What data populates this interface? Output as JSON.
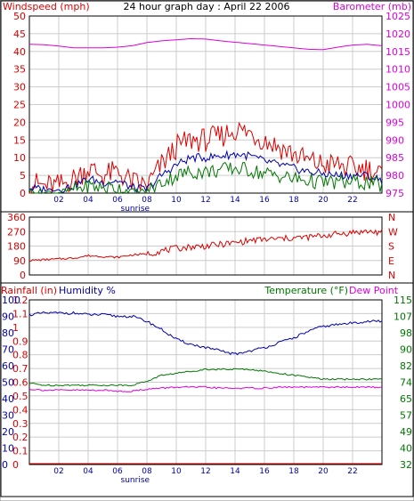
{
  "title": "24 hour graph day : April 22 2006",
  "colors": {
    "red": "#dd0000",
    "blue": "#0000aa",
    "green": "#007700",
    "magenta": "#dd00dd",
    "axis": "#000000",
    "grid": "#cccccc"
  },
  "chart_data": [
    {
      "type": "line",
      "title": "24 hour graph day : April 22 2006",
      "ylabel_left": "Windspeed (mph)",
      "ylabel_right": "Barometer (mb)",
      "x_ticks": [
        "02",
        "04",
        "06",
        "08",
        "10",
        "12",
        "14",
        "16",
        "18",
        "20",
        "22"
      ],
      "x_annotation": "sunrise",
      "ylim_left": [
        0,
        50
      ],
      "y_ticks_left": [
        "0",
        "5",
        "10",
        "15",
        "20",
        "25",
        "30",
        "35",
        "40",
        "45",
        "50"
      ],
      "ylim_right": [
        975,
        1025
      ],
      "y_ticks_right": [
        "975",
        "980",
        "985",
        "990",
        "995",
        "1000",
        "1005",
        "1010",
        "1015",
        "1020",
        "1025"
      ],
      "grid": true,
      "series": [
        {
          "name": "Barometer",
          "axis": "right",
          "color": "#dd00dd",
          "x": [
            0,
            1,
            2,
            3,
            4,
            5,
            6,
            7,
            8,
            9,
            10,
            11,
            12,
            13,
            14,
            15,
            16,
            17,
            18,
            19,
            20,
            21,
            22,
            23,
            24
          ],
          "values": [
            1017,
            1016.9,
            1016.5,
            1016,
            1016,
            1016,
            1016.2,
            1016.6,
            1017.5,
            1018,
            1018.3,
            1018.6,
            1018.5,
            1018,
            1017.6,
            1017.2,
            1016.8,
            1016.4,
            1016,
            1015.6,
            1015.5,
            1016.2,
            1016.8,
            1017,
            1016.6
          ]
        },
        {
          "name": "Gust",
          "axis": "left",
          "color": "#dd0000",
          "x": [
            0,
            1,
            2,
            3,
            4,
            5,
            6,
            7,
            8,
            9,
            10,
            11,
            12,
            13,
            14,
            15,
            16,
            17,
            18,
            19,
            20,
            21,
            22,
            23,
            24
          ],
          "values": [
            3,
            2,
            2,
            4,
            7,
            5,
            6,
            3,
            2,
            8,
            13,
            15,
            15,
            16,
            18,
            17,
            15,
            13,
            11,
            9,
            8,
            8,
            7,
            7,
            5
          ]
        },
        {
          "name": "Average",
          "axis": "left",
          "color": "#0000aa",
          "x": [
            0,
            1,
            2,
            3,
            4,
            5,
            6,
            7,
            8,
            9,
            10,
            11,
            12,
            13,
            14,
            15,
            16,
            17,
            18,
            19,
            20,
            21,
            22,
            23,
            24
          ],
          "values": [
            1.5,
            1,
            1,
            2,
            4,
            3,
            3.5,
            1.5,
            1,
            5,
            8,
            10,
            10,
            10.5,
            11,
            10.5,
            9,
            8,
            7,
            6,
            5.5,
            5,
            5,
            5,
            3.5
          ]
        },
        {
          "name": "Minimum",
          "axis": "left",
          "color": "#007700",
          "x": [
            0,
            1,
            2,
            3,
            4,
            5,
            6,
            7,
            8,
            9,
            10,
            11,
            12,
            13,
            14,
            15,
            16,
            17,
            18,
            19,
            20,
            21,
            22,
            23,
            24
          ],
          "values": [
            0.5,
            0.2,
            0.2,
            1,
            2,
            1.5,
            1.5,
            0.5,
            0.5,
            3,
            5,
            6,
            6,
            6.5,
            7,
            6.5,
            5.5,
            5,
            4,
            3.5,
            3,
            3,
            3,
            3,
            2
          ]
        }
      ]
    },
    {
      "type": "line",
      "ylim": [
        0,
        360
      ],
      "y_ticks_left": [
        "0",
        "90",
        "180",
        "270",
        "360"
      ],
      "y_ticks_right": [
        "N",
        "E",
        "S",
        "W",
        "N"
      ],
      "x_ticks": [],
      "grid": true,
      "series": [
        {
          "name": "Wind direction",
          "color": "#dd0000",
          "x": [
            0,
            1,
            2,
            3,
            4,
            5,
            6,
            7,
            8,
            9,
            10,
            11,
            12,
            13,
            14,
            15,
            16,
            17,
            18,
            19,
            20,
            21,
            22,
            23,
            24
          ],
          "values": [
            90,
            95,
            100,
            105,
            120,
            115,
            110,
            125,
            130,
            150,
            165,
            175,
            180,
            190,
            200,
            215,
            220,
            225,
            230,
            235,
            245,
            255,
            265,
            270,
            265
          ]
        }
      ]
    },
    {
      "type": "line",
      "ylabel_left_1": "Rainfall (in)",
      "ylabel_left_2": "Humidity %",
      "ylabel_right_1": "Temperature (°F)",
      "ylabel_right_2": "Dew Point",
      "x_ticks": [
        "02",
        "04",
        "06",
        "08",
        "10",
        "12",
        "14",
        "16",
        "18",
        "20",
        "22"
      ],
      "x_annotation": "sunrise",
      "rain_ticks": [
        "0",
        "0.1",
        "0.2",
        "0.3",
        "0.4",
        "0.5",
        "0.6",
        "0.7",
        "0.8",
        "0.9",
        "1",
        "1.1",
        "1.2"
      ],
      "ylim_rain": [
        0,
        1.2
      ],
      "humidity_ticks": [
        "0",
        "10",
        "20",
        "30",
        "40",
        "50",
        "60",
        "70",
        "80",
        "90",
        "100"
      ],
      "ylim_humidity": [
        0,
        100
      ],
      "temp_ticks": [
        "32",
        "40",
        "49",
        "57",
        "65",
        "74",
        "82",
        "90",
        "98",
        "107",
        "115"
      ],
      "ylim_temp": [
        32,
        115
      ],
      "grid": true,
      "series": [
        {
          "name": "Humidity",
          "axis": "humidity",
          "color": "#0000aa",
          "x": [
            0,
            1,
            2,
            3,
            4,
            5,
            6,
            7,
            8,
            9,
            10,
            11,
            12,
            13,
            14,
            15,
            16,
            17,
            18,
            19,
            20,
            21,
            22,
            23,
            24
          ],
          "values": [
            91,
            92,
            92,
            92,
            91,
            91,
            90,
            90,
            87,
            82,
            76,
            73,
            71,
            69,
            67,
            69,
            71,
            74,
            77,
            81,
            84,
            85,
            86,
            87,
            87
          ]
        },
        {
          "name": "Temperature",
          "axis": "temp",
          "color": "#007700",
          "x": [
            0,
            1,
            2,
            3,
            4,
            5,
            6,
            7,
            8,
            9,
            10,
            11,
            12,
            13,
            14,
            15,
            16,
            17,
            18,
            19,
            20,
            21,
            22,
            23,
            24
          ],
          "values": [
            73,
            72,
            72,
            72,
            72,
            72,
            72,
            72,
            74,
            77,
            78,
            79,
            80,
            80,
            80,
            80,
            79,
            78,
            77,
            76,
            75,
            75,
            75,
            75,
            75
          ]
        },
        {
          "name": "Dew Point",
          "axis": "temp",
          "color": "#dd00dd",
          "x": [
            0,
            1,
            2,
            3,
            4,
            5,
            6,
            7,
            8,
            9,
            10,
            11,
            12,
            13,
            14,
            15,
            16,
            17,
            18,
            19,
            20,
            21,
            22,
            23,
            24
          ],
          "values": [
            70,
            69.5,
            69.5,
            69.5,
            69.5,
            69.5,
            69,
            69,
            70,
            70.5,
            71,
            71,
            71,
            70.5,
            70.5,
            70.5,
            70.5,
            71,
            71,
            71,
            71,
            71,
            71,
            71,
            71
          ]
        },
        {
          "name": "Rainfall",
          "axis": "rain",
          "color": "#dd0000",
          "x": [
            0,
            24
          ],
          "values": [
            0,
            0
          ]
        }
      ]
    }
  ]
}
